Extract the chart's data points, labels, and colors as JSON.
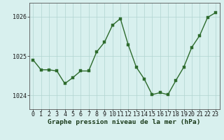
{
  "x": [
    0,
    1,
    2,
    3,
    4,
    5,
    6,
    7,
    8,
    9,
    10,
    11,
    12,
    13,
    14,
    15,
    16,
    17,
    18,
    19,
    20,
    21,
    22,
    23
  ],
  "y": [
    1024.9,
    1024.65,
    1024.65,
    1024.62,
    1024.3,
    1024.45,
    1024.62,
    1024.62,
    1025.1,
    1025.35,
    1025.78,
    1025.95,
    1025.28,
    1024.72,
    1024.42,
    1024.02,
    1024.07,
    1024.02,
    1024.38,
    1024.72,
    1025.22,
    1025.52,
    1025.98,
    1026.1
  ],
  "line_color": "#2d6b2d",
  "marker_color": "#2d6b2d",
  "bg_color": "#d8f0ee",
  "grid_color": "#b0d4d0",
  "xlabel": "Graphe pression niveau de la mer (hPa)",
  "ylim": [
    1023.65,
    1026.35
  ],
  "yticks": [
    1024,
    1025,
    1026
  ],
  "xticks": [
    0,
    1,
    2,
    3,
    4,
    5,
    6,
    7,
    8,
    9,
    10,
    11,
    12,
    13,
    14,
    15,
    16,
    17,
    18,
    19,
    20,
    21,
    22,
    23
  ],
  "xlabel_fontsize": 6.8,
  "tick_fontsize": 6.0,
  "ytick_fontsize": 6.0,
  "line_width": 1.0,
  "marker_size": 2.5
}
